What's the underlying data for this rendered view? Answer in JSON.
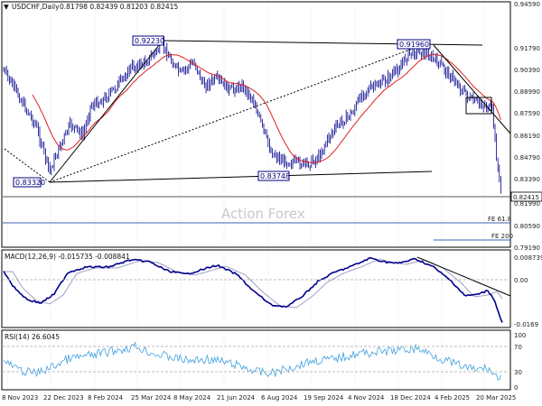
{
  "price_panel": {
    "title": "USDCHF,Daily",
    "ohlc": "0.81798  0.82439  0.81203  0.82415",
    "watermark": "Action Forex",
    "last_price": "0.82415",
    "fe_labels": [
      "FE 61.8",
      "FE 200"
    ],
    "annotations": [
      "0.83320",
      "0.92230",
      "0.83748",
      "0.91960"
    ],
    "y_ticks": [
      "0.94590",
      "0.91790",
      "0.90390",
      "0.88990",
      "0.87590",
      "0.86190",
      "0.84790",
      "0.83390",
      "0.81990",
      "0.80590",
      "0.79190"
    ]
  },
  "macd_panel": {
    "label": "MACD(12,26,9) -0.015735 -0.008841",
    "y_ticks": [
      "0.008739",
      "0.00",
      "-0.0169"
    ]
  },
  "rsi_panel": {
    "label": "RSI(14) 26.6045",
    "y_ticks": [
      "100",
      "70",
      "30",
      "0"
    ]
  },
  "x_ticks": [
    "8 Nov 2023",
    "22 Dec 2023",
    "8 Feb 2024",
    "25 Mar 2024",
    "8 May 2024",
    "21 Jun 2024",
    "6 Aug 2024",
    "19 Sep 2024",
    "4 Nov 2024",
    "18 Dec 2024",
    "4 Feb 2025",
    "20 Mar 2025"
  ],
  "colors": {
    "candle": "#00008b",
    "ma": "#e02020",
    "macd_main": "#00008b",
    "macd_signal": "#a0a0c8",
    "rsi": "#3ea0e0",
    "grid": "#cccccc"
  }
}
